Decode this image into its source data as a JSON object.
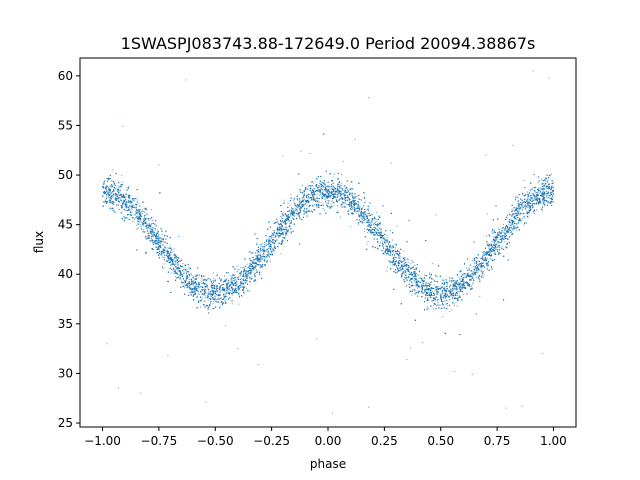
{
  "chart_data": {
    "type": "scatter",
    "title": "1SWASPJ083743.88-172649.0 Period 20094.38867s",
    "xlabel": "phase",
    "ylabel": "flux",
    "xlim": [
      -1.1,
      1.1
    ],
    "ylim": [
      24.6,
      61.8
    ],
    "xticks": [
      "-1.00",
      "-0.75",
      "-0.50",
      "-0.25",
      "0.00",
      "0.25",
      "0.50",
      "0.75",
      "1.00"
    ],
    "yticks": [
      "25",
      "30",
      "35",
      "40",
      "45",
      "50",
      "55",
      "60"
    ],
    "grid": false,
    "legend": "none",
    "point_color": "#1f77b4",
    "series": [
      {
        "model": "sinusoid",
        "phase_range": [
          -1.0,
          1.0
        ],
        "mean_flux": 43.2,
        "amplitude": 5.1,
        "period_in_phase": 1.0,
        "peak_phase": 0.0,
        "minimum_phases": [
          -0.5,
          0.5
        ],
        "minimum_flux": 38.1,
        "maximum_flux": 48.3,
        "scatter_sigma": 0.75,
        "points": 14000,
        "outliers": [
          [
            -0.93,
            28.5
          ],
          [
            -0.83,
            28.0
          ],
          [
            -0.54,
            27.1
          ],
          [
            0.18,
            26.6
          ],
          [
            0.02,
            26.0
          ],
          [
            0.79,
            26.5
          ],
          [
            0.86,
            26.7
          ],
          [
            -0.63,
            59.6
          ],
          [
            0.18,
            57.8
          ],
          [
            0.91,
            60.5
          ],
          [
            0.98,
            59.8
          ],
          [
            -0.91,
            54.9
          ],
          [
            0.82,
            53.0
          ],
          [
            -0.12,
            52.4
          ],
          [
            0.35,
            31.4
          ],
          [
            -0.31,
            30.9
          ],
          [
            0.56,
            30.2
          ],
          [
            -0.71,
            31.8
          ],
          [
            0.64,
            29.9
          ],
          [
            0.12,
            53.6
          ],
          [
            -0.4,
            32.5
          ],
          [
            0.42,
            33.1
          ],
          [
            -0.2,
            51.9
          ],
          [
            0.28,
            51.2
          ],
          [
            -0.75,
            51.0
          ],
          [
            0.7,
            52.0
          ],
          [
            -0.05,
            33.5
          ],
          [
            0.95,
            32.0
          ],
          [
            -0.98,
            33.0
          ],
          [
            0.48,
            46.0
          ]
        ]
      }
    ]
  }
}
